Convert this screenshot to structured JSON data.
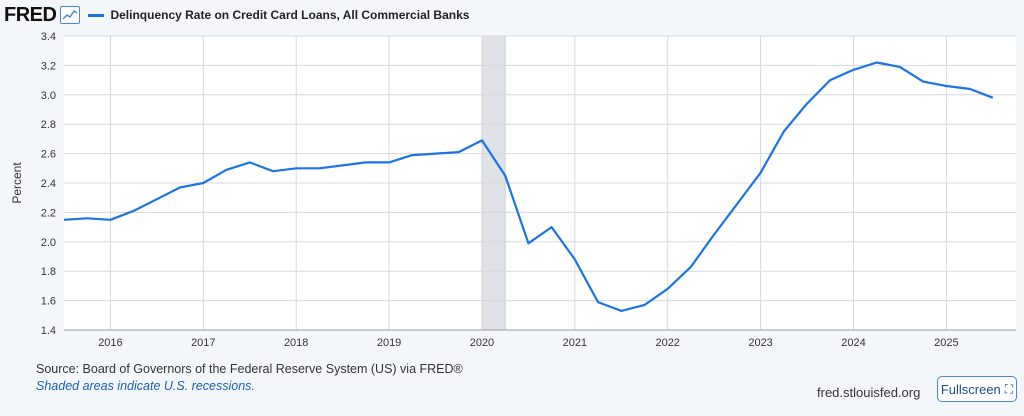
{
  "header": {
    "logo_text": "FRED",
    "legend_label": "Delinquency Rate on Credit Card Loans, All Commercial Banks",
    "series_color": "#1a73e8"
  },
  "footer": {
    "source": "Source: Board of Governors of the Federal Reserve System (US) via FRED®",
    "recession_note": "Shaded areas indicate U.S. recessions.",
    "site": "fred.stlouisfed.org",
    "fullscreen_label": "Fullscreen"
  },
  "icons": {
    "fullscreen": "fullscreen-icon",
    "graph": "line-graph-icon"
  },
  "chart_data": {
    "type": "line",
    "title": "",
    "xlabel": "",
    "ylabel": "Percent",
    "ylim": [
      1.4,
      3.4
    ],
    "xlim": [
      2015.5,
      2025.75
    ],
    "y_ticks": [
      1.4,
      1.6,
      1.8,
      2.0,
      2.2,
      2.4,
      2.6,
      2.8,
      3.0,
      3.2,
      3.4
    ],
    "y_tick_labels": [
      "1.4",
      "1.6",
      "1.8",
      "2.0",
      "2.2",
      "2.4",
      "2.6",
      "2.8",
      "3.0",
      "3.2",
      "3.4"
    ],
    "x_ticks": [
      2016,
      2017,
      2018,
      2019,
      2020,
      2021,
      2022,
      2023,
      2024,
      2025
    ],
    "x_tick_labels": [
      "2016",
      "2017",
      "2018",
      "2019",
      "2020",
      "2021",
      "2022",
      "2023",
      "2024",
      "2025"
    ],
    "grid": true,
    "recessions": [
      [
        2020.0,
        2020.25
      ]
    ],
    "series": [
      {
        "name": "Delinquency Rate on Credit Card Loans, All Commercial Banks",
        "color": "#1a73e8",
        "x": [
          2015.5,
          2015.75,
          2016.0,
          2016.25,
          2016.5,
          2016.75,
          2017.0,
          2017.25,
          2017.5,
          2017.75,
          2018.0,
          2018.25,
          2018.5,
          2018.75,
          2019.0,
          2019.25,
          2019.5,
          2019.75,
          2020.0,
          2020.25,
          2020.5,
          2020.75,
          2021.0,
          2021.25,
          2021.5,
          2021.75,
          2022.0,
          2022.25,
          2022.5,
          2022.75,
          2023.0,
          2023.25,
          2023.5,
          2023.75,
          2024.0,
          2024.25,
          2024.5,
          2024.75,
          2025.0,
          2025.25,
          2025.5
        ],
        "values": [
          2.15,
          2.16,
          2.15,
          2.21,
          2.29,
          2.37,
          2.4,
          2.49,
          2.54,
          2.48,
          2.5,
          2.5,
          2.52,
          2.54,
          2.54,
          2.59,
          2.6,
          2.61,
          2.69,
          2.45,
          1.99,
          2.1,
          1.88,
          1.59,
          1.53,
          1.57,
          1.68,
          1.83,
          2.05,
          2.26,
          2.47,
          2.75,
          2.94,
          3.1,
          3.17,
          3.22,
          3.19,
          3.09,
          3.06,
          3.04,
          2.98
        ]
      }
    ]
  }
}
